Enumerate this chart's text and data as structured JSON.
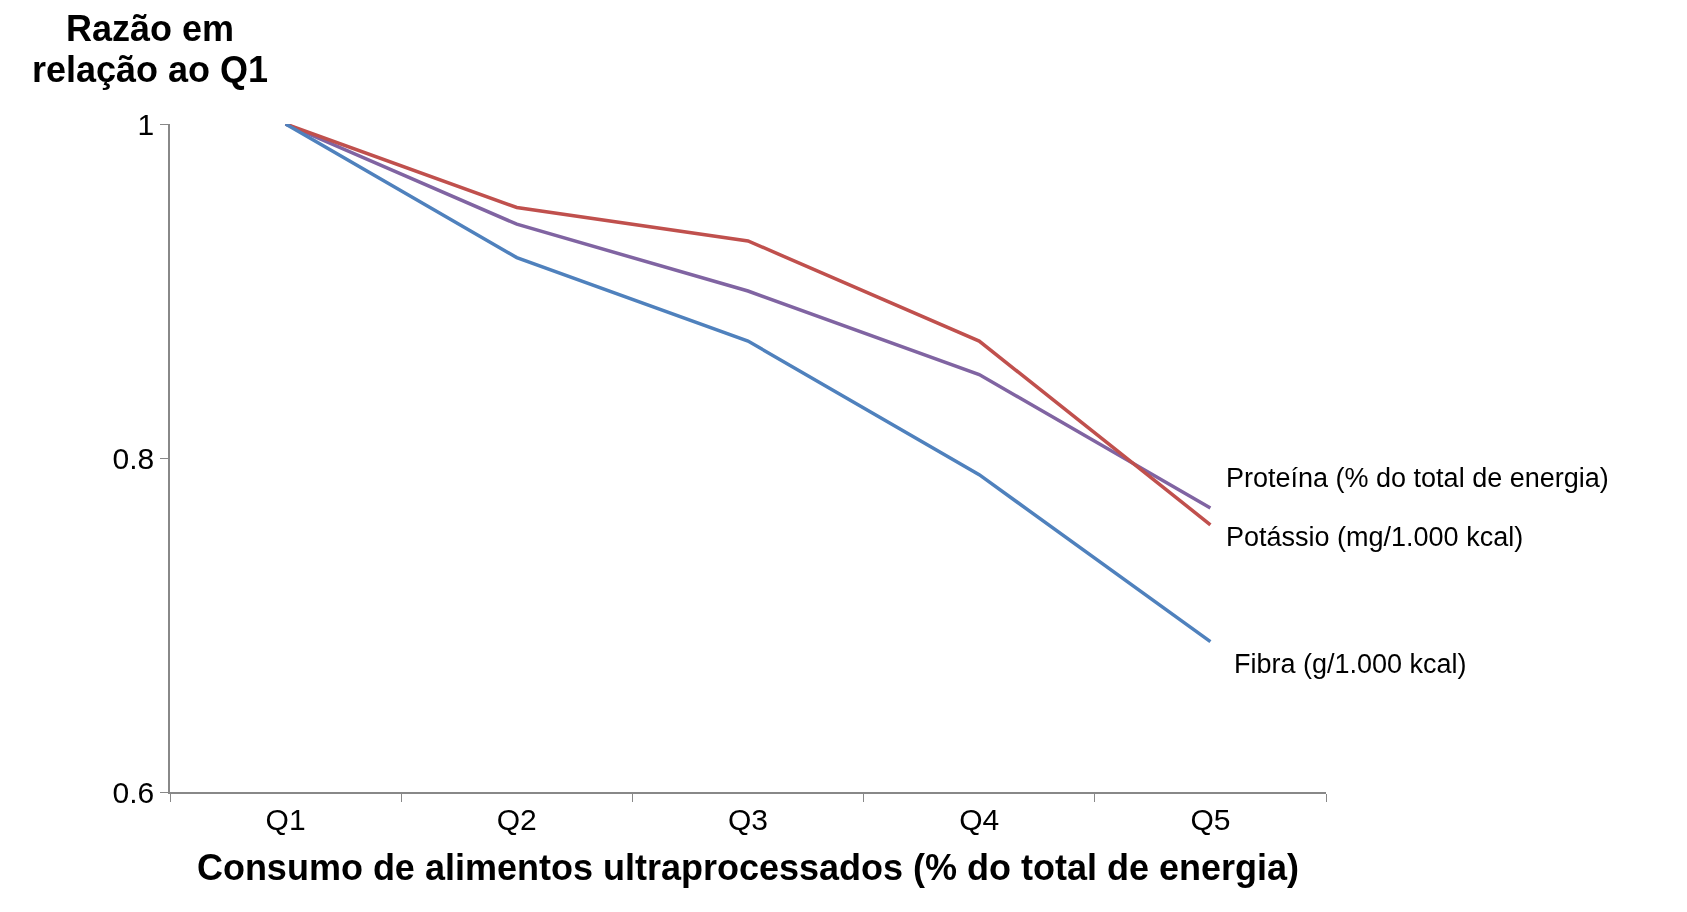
{
  "chart_data": {
    "type": "line",
    "xlabel": "Consumo de alimentos ultraprocessados (% do total de energia)",
    "ylabel": "Razão em relação ao Q1",
    "categories": [
      "Q1",
      "Q2",
      "Q3",
      "Q4",
      "Q5"
    ],
    "series": [
      {
        "name": "Proteína (% do total de energia)",
        "color": "#8064a2",
        "values": [
          1,
          0.94,
          0.9,
          0.85,
          0.77
        ]
      },
      {
        "name": "Potássio (mg/1.000 kcal)",
        "color": "#c0504d",
        "values": [
          1,
          0.95,
          0.93,
          0.87,
          0.76
        ]
      },
      {
        "name": "Fibra (g/1.000 kcal)",
        "color": "#4f81bd",
        "values": [
          1,
          0.92,
          0.87,
          0.79,
          0.69
        ]
      }
    ],
    "ylim": [
      0.6,
      1
    ],
    "yticks": [
      0.6,
      0.8,
      1
    ],
    "grid": false,
    "legend": false,
    "marker": "none",
    "line_style": "solid"
  }
}
